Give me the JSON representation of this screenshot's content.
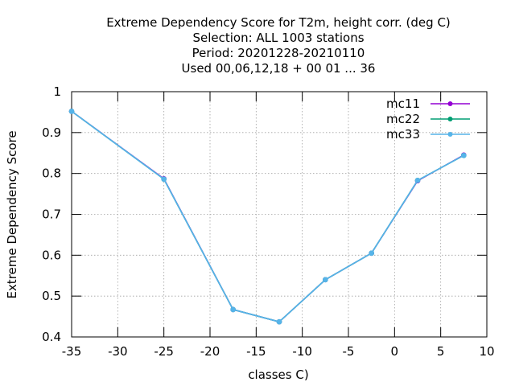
{
  "chart_data": {
    "type": "line",
    "title_lines": [
      "Extreme Dependency Score  for T2m, height corr. (deg C)",
      "Selection: ALL   1003 stations",
      "Period: 20201228-20210110",
      "Used  00,06,12,18 + 00 01 ... 36"
    ],
    "xlabel": "classes C)",
    "ylabel": "Extreme Dependency Score",
    "xlim": [
      -35,
      10
    ],
    "ylim": [
      0.4,
      1
    ],
    "x_ticks": [
      -35,
      -30,
      -25,
      -20,
      -15,
      -10,
      -5,
      0,
      5,
      10
    ],
    "y_ticks": [
      0.4,
      0.5,
      0.6,
      0.7,
      0.8,
      0.9,
      1
    ],
    "y_tick_labels": [
      "0.4",
      "0.5",
      "0.6",
      "0.7",
      "0.8",
      "0.9",
      "1"
    ],
    "grid": true,
    "legend_position": "top-right",
    "series": [
      {
        "name": "mc11",
        "color": "#9400d3",
        "x": [
          -35,
          -25,
          -17.5,
          -12.5,
          -7.5,
          -2.5,
          2.5,
          7.5
        ],
        "y": [
          0.952,
          0.787,
          0.467,
          0.437,
          0.54,
          0.605,
          0.782,
          0.845
        ]
      },
      {
        "name": "mc22",
        "color": "#009e73",
        "x": [
          -35,
          -25,
          -17.5,
          -12.5,
          -7.5,
          -2.5,
          2.5,
          7.5
        ],
        "y": [
          0.952,
          0.786,
          0.467,
          0.437,
          0.54,
          0.605,
          0.783,
          0.844
        ]
      },
      {
        "name": "mc33",
        "color": "#56b4e9",
        "x": [
          -35,
          -25,
          -17.5,
          -12.5,
          -7.5,
          -2.5,
          2.5,
          7.5
        ],
        "y": [
          0.952,
          0.786,
          0.467,
          0.437,
          0.54,
          0.605,
          0.783,
          0.844
        ]
      }
    ]
  }
}
